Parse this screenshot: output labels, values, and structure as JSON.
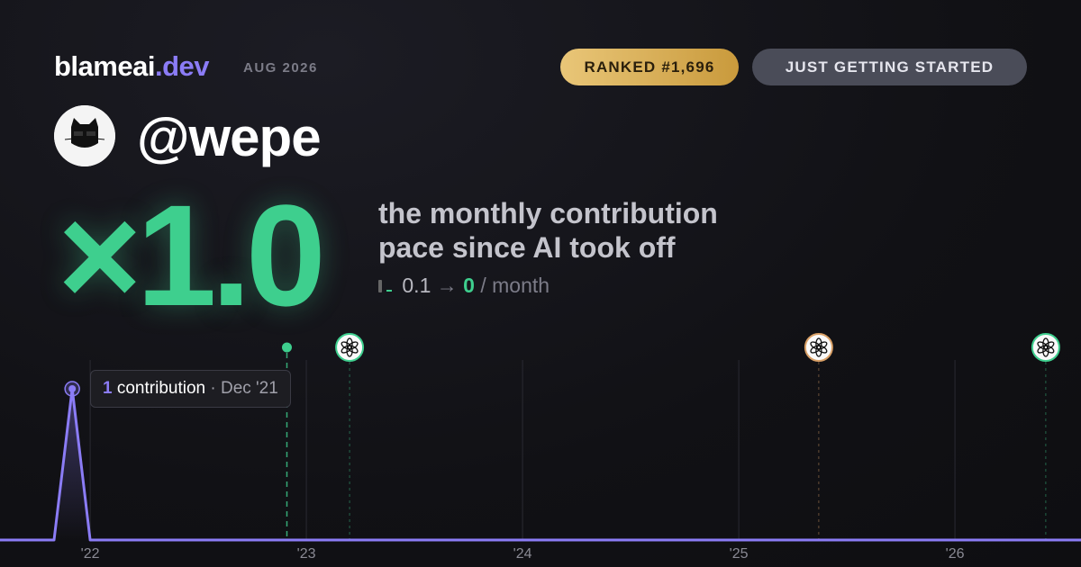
{
  "header": {
    "brand": "blameai",
    "brand_suffix": ".dev",
    "date": "AUG 2026",
    "rank_badge": "RANKED #1,696",
    "status_badge": "JUST GETTING STARTED"
  },
  "profile": {
    "handle": "@wepe"
  },
  "headline": {
    "multiplier": "×1.0",
    "description": [
      "the monthly contribution",
      "pace since AI took off"
    ],
    "pace": {
      "before": "0.1",
      "arrow": "→",
      "after": "0",
      "unit": "/ month"
    }
  },
  "chart_data": {
    "type": "line",
    "x": [
      2021.583,
      2021.833,
      2021.917,
      2022.0,
      2026.583
    ],
    "series": [
      {
        "color": "#8b7cf6",
        "values": [
          0,
          0,
          1,
          0,
          0
        ]
      }
    ],
    "xlim": [
      2021.583,
      2026.583
    ],
    "ylim": [
      0,
      1
    ],
    "xticks": [
      {
        "value": 2022,
        "label": "'22"
      },
      {
        "value": 2023,
        "label": "'23"
      },
      {
        "value": 2024,
        "label": "'24"
      },
      {
        "value": 2025,
        "label": "'25"
      },
      {
        "value": 2026,
        "label": "'26"
      }
    ],
    "grid": true,
    "events": [
      {
        "x": 2022.91,
        "color": "#3ecf8e"
      },
      {
        "x": 2023.2,
        "color": "#3ecf8e"
      },
      {
        "x": 2025.37,
        "color": "#d9a066"
      },
      {
        "x": 2026.42,
        "color": "#3ecf8e"
      }
    ],
    "tooltip": {
      "value": "1",
      "label": "contribution",
      "separator": "·",
      "date": "Dec '21"
    }
  }
}
